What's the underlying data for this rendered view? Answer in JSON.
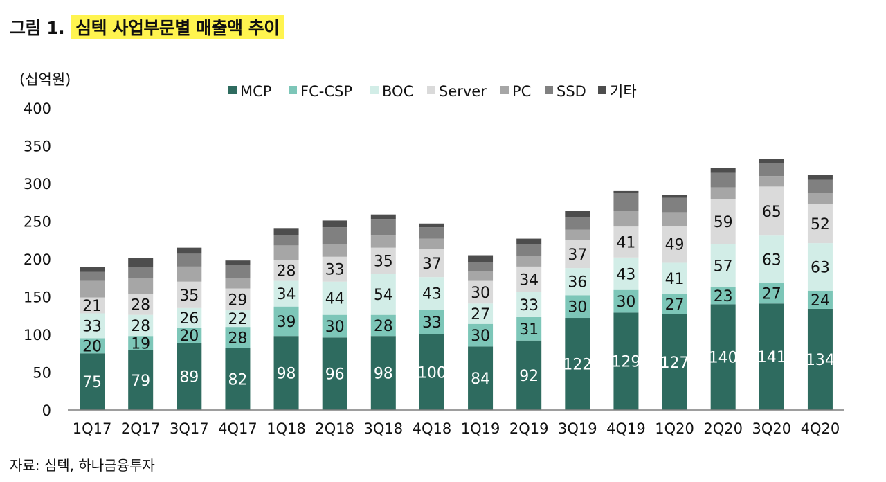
{
  "header": {
    "figure_label": "그림 1.",
    "title": "심텍 사업부문별 매출액 추이"
  },
  "source": "자료: 심텍, 하나금융투자",
  "colors": {
    "title_highlight": "#fff44f",
    "rule": "#8a8a8a"
  },
  "chart_data": {
    "type": "bar",
    "stacked": true,
    "title": "",
    "xlabel": "",
    "ylabel": "(십억원)",
    "ylim": [
      0,
      400
    ],
    "yticks": [
      0,
      50,
      100,
      150,
      200,
      250,
      300,
      350,
      400
    ],
    "grid": false,
    "legend_position": "top",
    "categories": [
      "1Q17",
      "2Q17",
      "3Q17",
      "4Q17",
      "1Q18",
      "2Q18",
      "3Q18",
      "4Q18",
      "1Q19",
      "2Q19",
      "3Q19",
      "4Q19",
      "1Q20",
      "2Q20",
      "3Q20",
      "4Q20"
    ],
    "series": [
      {
        "name": "MCP",
        "color": "#2e6b5f",
        "label_color": "#ffffff",
        "show_labels": true,
        "values": [
          75,
          79,
          89,
          82,
          98,
          96,
          98,
          100,
          84,
          92,
          122,
          129,
          127,
          140,
          141,
          134
        ]
      },
      {
        "name": "FC-CSP",
        "color": "#7dc6b8",
        "label_color": "#111111",
        "show_labels": true,
        "values": [
          20,
          19,
          20,
          28,
          39,
          30,
          28,
          33,
          30,
          31,
          30,
          30,
          27,
          23,
          27,
          24
        ]
      },
      {
        "name": "BOC",
        "color": "#d2ede7",
        "label_color": "#111111",
        "show_labels": true,
        "values": [
          33,
          28,
          26,
          22,
          34,
          44,
          54,
          43,
          27,
          33,
          36,
          43,
          41,
          57,
          63,
          63
        ]
      },
      {
        "name": "Server",
        "color": "#dadada",
        "label_color": "#111111",
        "show_labels": true,
        "values": [
          21,
          28,
          35,
          29,
          28,
          33,
          35,
          37,
          30,
          34,
          37,
          41,
          49,
          59,
          65,
          52
        ]
      },
      {
        "name": "PC",
        "color": "#a6a6a6",
        "label_color": "#111111",
        "show_labels": false,
        "values": [
          22,
          21,
          20,
          14,
          19,
          16,
          16,
          14,
          13,
          14,
          14,
          21,
          18,
          16,
          14,
          15
        ]
      },
      {
        "name": "SSD",
        "color": "#808080",
        "label_color": "#111111",
        "show_labels": false,
        "values": [
          12,
          14,
          17,
          17,
          14,
          23,
          22,
          15,
          12,
          15,
          16,
          24,
          19,
          19,
          17,
          17
        ]
      },
      {
        "name": "기타",
        "color": "#4d4d4d",
        "label_color": "#111111",
        "show_labels": false,
        "values": [
          6,
          12,
          8,
          6,
          9,
          9,
          6,
          5,
          9,
          8,
          9,
          2,
          4,
          7,
          6,
          6
        ]
      }
    ]
  }
}
